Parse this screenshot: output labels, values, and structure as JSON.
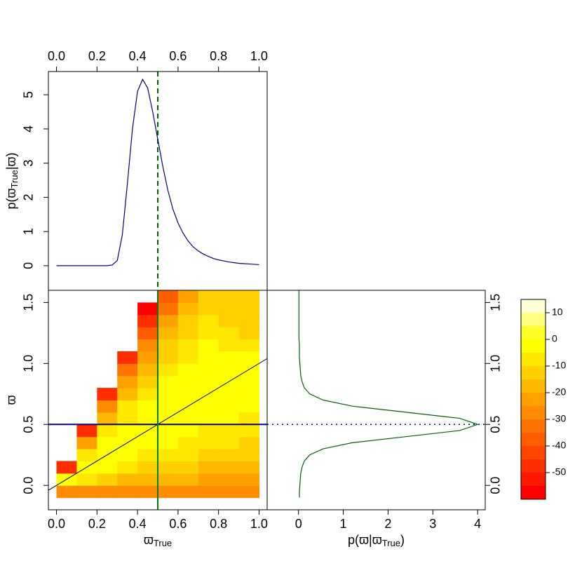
{
  "chart_data": [
    {
      "type": "line",
      "color": "#000080",
      "x": [
        0,
        0.025,
        0.05,
        0.075,
        0.1,
        0.125,
        0.15,
        0.175,
        0.2,
        0.225,
        0.25,
        0.275,
        0.3,
        0.325,
        0.35,
        0.375,
        0.4,
        0.425,
        0.45,
        0.475,
        0.5,
        0.525,
        0.55,
        0.575,
        0.6,
        0.625,
        0.65,
        0.675,
        0.7,
        0.725,
        0.75,
        0.775,
        0.8,
        0.825,
        0.85,
        0.875,
        0.9,
        0.925,
        0.95,
        0.975,
        1
      ],
      "values": [
        0,
        0,
        0,
        0,
        0,
        0,
        0,
        0,
        0,
        0,
        0,
        0.02,
        0.15,
        0.9,
        2.4,
        4.0,
        5.1,
        5.45,
        5.2,
        4.5,
        3.7,
        2.9,
        2.2,
        1.65,
        1.25,
        0.95,
        0.72,
        0.55,
        0.43,
        0.34,
        0.27,
        0.21,
        0.17,
        0.14,
        0.11,
        0.09,
        0.07,
        0.06,
        0.05,
        0.04,
        0.03
      ],
      "xlim": [
        -0.04,
        1.04
      ],
      "ylim": [
        -0.72,
        5.68
      ],
      "xticks": [
        {
          "value": 0,
          "label": "0.0"
        },
        0.2,
        0.4,
        0.6,
        0.8,
        {
          "value": 1,
          "label": "1.0"
        }
      ],
      "yticks": [
        0,
        1,
        2,
        3,
        4,
        5
      ],
      "xaxis": "top",
      "ylabel": [
        "p(ϖ",
        "True",
        "|ϖ)"
      ],
      "vline": {
        "x": 0.5,
        "color": "#006400",
        "dash": "dashed"
      }
    },
    {
      "type": "heatmap",
      "x": [
        0.05,
        0.15,
        0.25,
        0.35,
        0.45,
        0.55,
        0.65,
        0.75,
        0.85,
        0.95
      ],
      "y": [
        -0.05,
        0.05,
        0.15,
        0.25,
        0.35,
        0.45,
        0.55,
        0.65,
        0.75,
        0.85,
        0.95,
        1.05,
        1.15,
        1.25,
        1.35,
        1.45,
        1.55
      ],
      "values": [
        [
          -27,
          -2,
          -46,
          null,
          null,
          null,
          null,
          null,
          null,
          null,
          null,
          null,
          null,
          null,
          null,
          null,
          null
        ],
        [
          -27,
          -8,
          -2,
          -7,
          -22,
          -46,
          null,
          null,
          null,
          null,
          null,
          null,
          null,
          null,
          null,
          null,
          null
        ],
        [
          -27,
          -13,
          -5,
          -2,
          -4,
          -9,
          -18,
          -30,
          -46,
          null,
          null,
          null,
          null,
          null,
          null,
          null,
          null
        ],
        [
          -27,
          -16,
          -8,
          -4,
          -2,
          -3,
          -6,
          -10,
          -16,
          -24,
          -34,
          -46,
          null,
          null,
          null,
          null,
          null
        ],
        [
          -27,
          -18,
          -11,
          -6,
          -3,
          -2,
          -3,
          -4,
          -7,
          -11,
          -16,
          -22,
          -29,
          -37,
          -46,
          -56,
          null
        ],
        [
          -27,
          -19,
          -13,
          -8,
          -5,
          -3,
          -2,
          -2,
          -3,
          -5,
          -8,
          -11,
          -15,
          -20,
          -25,
          -31,
          -38
        ],
        [
          -27,
          -20,
          -15,
          -10,
          -7,
          -4,
          -3,
          -2,
          -2,
          -3,
          -4,
          -6,
          -9,
          -11,
          -15,
          -19,
          -23
        ],
        [
          -27,
          -21,
          -16,
          -12,
          -8,
          -6,
          -4,
          -2,
          -2,
          -2,
          -3,
          -4,
          -5,
          -7,
          -9,
          -12,
          -15
        ],
        [
          -27,
          -22,
          -17,
          -13,
          -10,
          -7,
          -5,
          -3,
          -2,
          -2,
          -3,
          -4,
          -6,
          -9,
          -11,
          -12,
          -13
        ],
        [
          -27,
          -22,
          -18,
          -14,
          -11,
          -8,
          -6,
          -5,
          -4,
          -4,
          -4,
          -5,
          -8,
          -11,
          -12,
          -13,
          -14
        ]
      ],
      "xlim": [
        -0.04,
        1.04
      ],
      "ylim": [
        -0.2,
        1.6
      ],
      "xticks": [
        {
          "value": 0,
          "label": "0.0"
        },
        0.2,
        0.4,
        0.6,
        0.8,
        {
          "value": 1,
          "label": "1.0"
        }
      ],
      "yticks": [
        {
          "value": 0,
          "label": "0.0"
        },
        0.5,
        {
          "value": 1,
          "label": "1.0"
        },
        1.5
      ],
      "xlabel": [
        "ϖ",
        "True"
      ],
      "ylabel": "ϖ",
      "vline": {
        "x": 0.5,
        "color": "#008000"
      },
      "hline": {
        "y": 0.5,
        "color": "#000080"
      },
      "abline": {
        "intercept": 0,
        "slope": 1,
        "color": "#000000"
      }
    },
    {
      "type": "line",
      "orientation": "horizontal",
      "color": "#006400",
      "y": [
        -0.1,
        -0.05,
        0,
        0.05,
        0.1,
        0.15,
        0.2,
        0.25,
        0.3,
        0.35,
        0.4,
        0.45,
        0.5,
        0.55,
        0.6,
        0.65,
        0.7,
        0.75,
        0.8,
        0.85,
        0.9,
        0.95,
        1,
        1.05,
        1.1,
        1.15,
        1.2,
        1.25,
        1.3,
        1.35,
        1.4,
        1.45,
        1.5,
        1.55,
        1.6
      ],
      "values": [
        0.02,
        0.02,
        0.03,
        0.04,
        0.05,
        0.08,
        0.13,
        0.25,
        0.55,
        1.2,
        2.4,
        3.6,
        4.0,
        3.6,
        2.4,
        1.2,
        0.55,
        0.25,
        0.13,
        0.08,
        0.05,
        0.04,
        0.03,
        0.02,
        0.02,
        0.02,
        0.01,
        0.01,
        0.01,
        0.01,
        0.01,
        0.01,
        0.01,
        0.01,
        0.01
      ],
      "xlim": [
        -0.7,
        4.17
      ],
      "ylim": [
        -0.2,
        1.6
      ],
      "xticks": [
        0,
        1,
        2,
        3,
        4
      ],
      "yticks": [
        {
          "value": 0,
          "label": "0.0"
        },
        0.5,
        {
          "value": 1,
          "label": "1.0"
        },
        1.5
      ],
      "yaxis": "right",
      "xlabel": [
        "p(ϖ|ϖ",
        "True",
        ")"
      ],
      "hline": {
        "y": 0.5,
        "color": "#000080",
        "dash": "dotted"
      }
    },
    {
      "type": "colorbar",
      "levels": [
        -60,
        -55,
        -50,
        -45,
        -40,
        -35,
        -30,
        -25,
        -20,
        -15,
        -10,
        -5,
        0,
        5,
        10,
        15
      ],
      "colors": [
        "#FF0000",
        "#FF1700",
        "#FF2E00",
        "#FF4600",
        "#FF5D00",
        "#FF7400",
        "#FF8B00",
        "#FFA200",
        "#FFB900",
        "#FFD100",
        "#FFE800",
        "#FFFF00",
        "#FFFF2A",
        "#FFFF80",
        "#FFFFD5"
      ],
      "yticks": [
        -50,
        -40,
        -30,
        -20,
        -10,
        0,
        10
      ]
    }
  ]
}
